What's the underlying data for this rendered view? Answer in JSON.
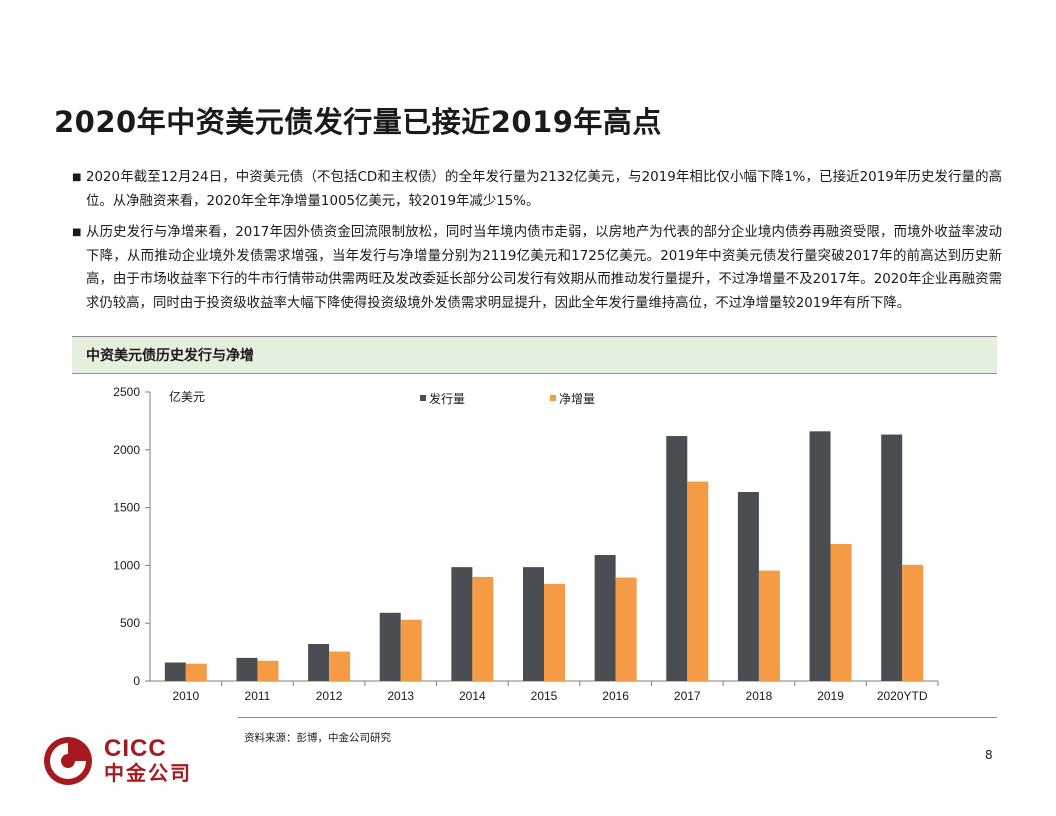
{
  "title": "2020年中资美元债发行量已接近2019年高点",
  "bullets": [
    "2020年截至12月24日，中资美元债（不包括CD和主权债）的全年发行量为2132亿美元，与2019年相比仅小幅下降1%，已接近2019年历史发行量的高位。从净融资来看，2020年全年净增量1005亿美元，较2019年减少15%。",
    "从历史发行与净增来看，2017年因外债资金回流限制放松，同时当年境内债市走弱，以房地产为代表的部分企业境内债券再融资受限，而境外收益率波动下降，从而推动企业境外发债需求增强，当年发行与净增量分别为2119亿美元和1725亿美元。2019年中资美元债发行量突破2017年的前高达到历史新高，由于市场收益率下行的牛市行情带动供需两旺及发改委延长部分公司发行有效期从而推动发行量提升，不过净增量不及2017年。2020年企业再融资需求仍较高，同时由于投资级收益率大幅下降使得投资级境外发债需求明显提升，因此全年发行量维持高位，不过净增量较2019年有所下降。"
  ],
  "bullet_mark": "■",
  "chart_header": "中资美元债历史发行与净增",
  "source": "资料来源：彭博，中金公司研究",
  "page_number": "8",
  "logo": {
    "en": "CICC",
    "cn": "中金公司",
    "color": "#a6191e"
  },
  "chart_data": {
    "type": "bar",
    "title": "中资美元债历史发行与净增",
    "ylabel": "亿美元",
    "ylim": [
      0,
      2500
    ],
    "yticks": [
      0,
      500,
      1000,
      1500,
      2000,
      2500
    ],
    "grid": false,
    "legend_position": "top",
    "categories": [
      "2010",
      "2011",
      "2012",
      "2013",
      "2014",
      "2015",
      "2016",
      "2017",
      "2018",
      "2019",
      "2020YTD"
    ],
    "series": [
      {
        "name": "发行量",
        "color": "#4a4d52",
        "values": [
          160,
          200,
          320,
          590,
          985,
          985,
          1090,
          2119,
          1635,
          2160,
          2132
        ]
      },
      {
        "name": "净增量",
        "color": "#f59a45",
        "values": [
          150,
          175,
          255,
          530,
          900,
          840,
          895,
          1725,
          955,
          1185,
          1005
        ]
      }
    ]
  }
}
